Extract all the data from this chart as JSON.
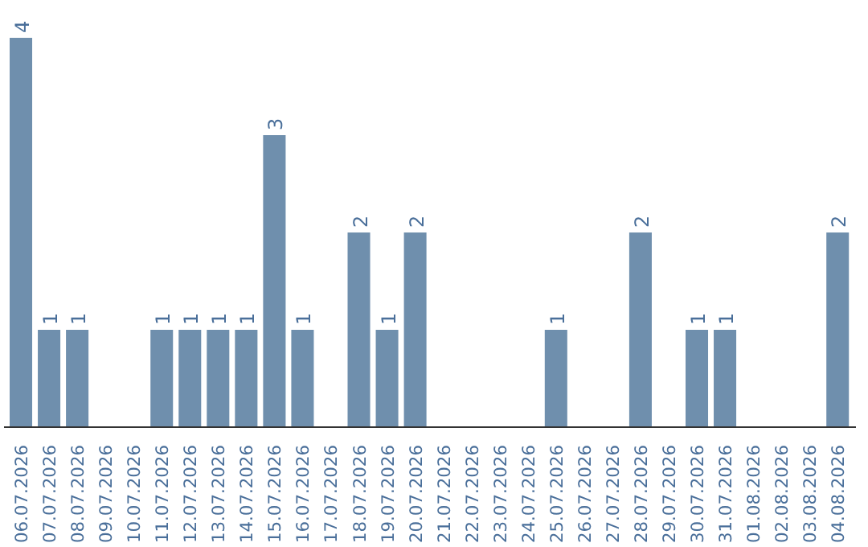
{
  "chart_data": {
    "type": "bar",
    "categories": [
      "06.07.2026",
      "07.07.2026",
      "08.07.2026",
      "09.07.2026",
      "10.07.2026",
      "11.07.2026",
      "12.07.2026",
      "13.07.2026",
      "14.07.2026",
      "15.07.2026",
      "16.07.2026",
      "17.07.2026",
      "18.07.2026",
      "19.07.2026",
      "20.07.2026",
      "21.07.2026",
      "22.07.2026",
      "23.07.2026",
      "24.07.2026",
      "25.07.2026",
      "26.07.2026",
      "27.07.2026",
      "28.07.2026",
      "29.07.2026",
      "30.07.2026",
      "31.07.2026",
      "01.08.2026",
      "02.08.2026",
      "03.08.2026",
      "04.08.2026"
    ],
    "values": [
      4,
      1,
      1,
      0,
      0,
      1,
      1,
      1,
      1,
      3,
      1,
      0,
      2,
      1,
      2,
      0,
      0,
      0,
      0,
      1,
      0,
      0,
      2,
      0,
      1,
      1,
      0,
      0,
      0,
      2
    ],
    "value_labels": [
      "4",
      "1",
      "1",
      null,
      null,
      "1",
      "1",
      "1",
      "1",
      "3",
      "1",
      null,
      "2",
      "1",
      "2",
      null,
      null,
      null,
      null,
      "1",
      null,
      null,
      "2",
      null,
      "1",
      "1",
      null,
      null,
      null,
      "2"
    ],
    "color": "#6f8fad",
    "grid": false
  }
}
